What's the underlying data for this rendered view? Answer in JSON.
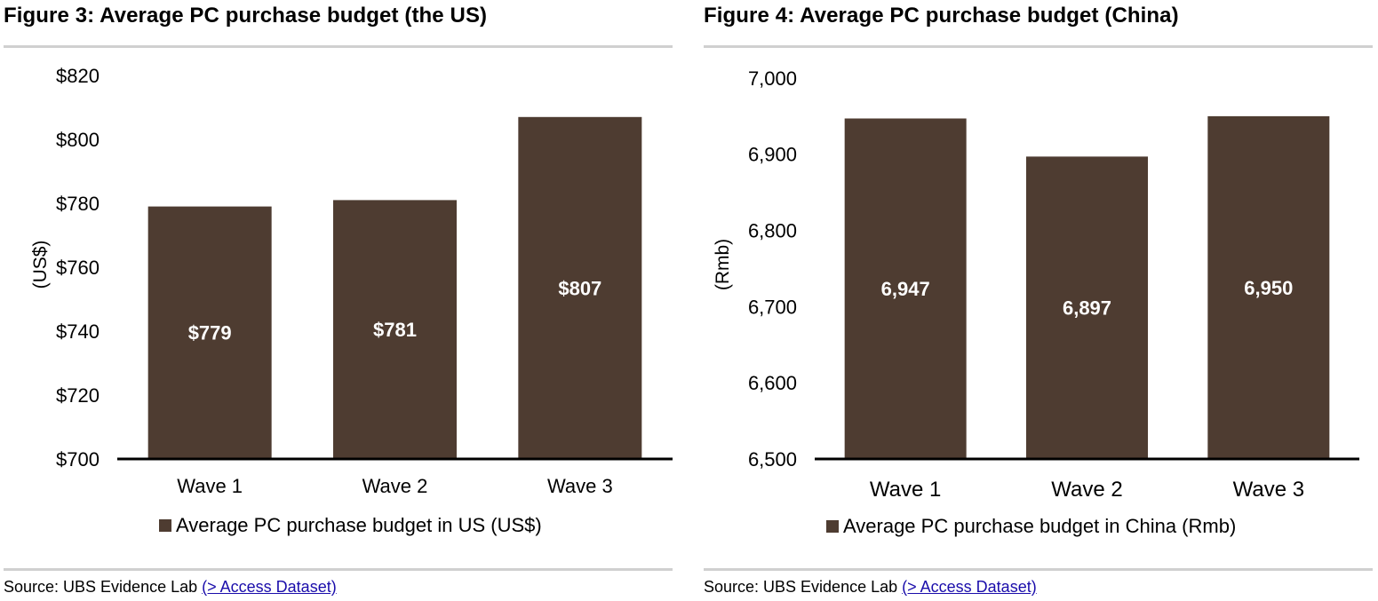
{
  "colors": {
    "bar": "#4e3c31",
    "bar_label": "#ffffff",
    "axis": "#000000",
    "text": "#000000",
    "rule": "#d0d0d0",
    "link": "#1a0dab"
  },
  "figures": [
    {
      "title": "Figure 3: Average PC purchase budget (the US)",
      "source_prefix": "Source:  UBS Evidence Lab ",
      "source_link": "(> Access Dataset)",
      "source_suffix": ")"
    },
    {
      "title": "Figure 4: Average PC purchase budget (China)",
      "source_prefix": "Source:  UBS Evidence Lab ",
      "source_link": "(> Access Dataset)",
      "source_suffix": ")"
    }
  ],
  "chart_data": [
    {
      "type": "bar",
      "title": "Figure 3: Average PC purchase budget (the US)",
      "categories": [
        "Wave 1",
        "Wave 2",
        "Wave 3"
      ],
      "series": [
        {
          "name": "Average PC purchase budget in US (US$)",
          "values": [
            779,
            781,
            807
          ],
          "data_labels": [
            "$779",
            "$781",
            "$807"
          ]
        }
      ],
      "ylabel": "(US$)",
      "ylim": [
        700,
        820
      ],
      "yticks": [
        700,
        720,
        740,
        760,
        780,
        800,
        820
      ],
      "ytick_labels": [
        "$700",
        "$720",
        "$740",
        "$760",
        "$780",
        "$800",
        "$820"
      ],
      "grid": false,
      "legend": "bottom"
    },
    {
      "type": "bar",
      "title": "Figure 4: Average PC purchase budget (China)",
      "categories": [
        "Wave 1",
        "Wave 2",
        "Wave 3"
      ],
      "series": [
        {
          "name": "Average PC purchase budget in China (Rmb)",
          "values": [
            6947,
            6897,
            6950
          ],
          "data_labels": [
            "6,947",
            "6,897",
            "6,950"
          ]
        }
      ],
      "ylabel": "(Rmb)",
      "ylim": [
        6500,
        7000
      ],
      "yticks": [
        6500,
        6600,
        6700,
        6800,
        6900,
        7000
      ],
      "ytick_labels": [
        "6,500",
        "6,600",
        "6,700",
        "6,800",
        "6,900",
        "7,000"
      ],
      "grid": false,
      "legend": "bottom"
    }
  ]
}
